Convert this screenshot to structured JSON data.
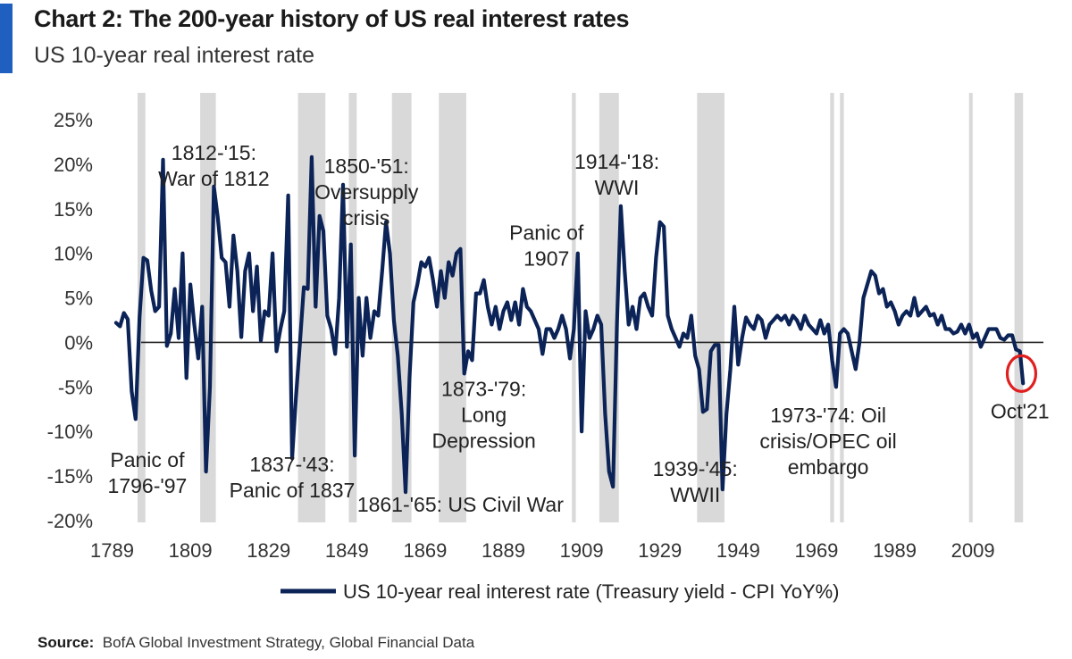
{
  "header": {
    "title": "Chart 2: The 200-year history of US real interest rates",
    "subtitle": "US 10-year real interest rate"
  },
  "source": {
    "label": "Source:",
    "text": "BofA Global Investment Strategy, Global Financial Data"
  },
  "colors": {
    "line": "#0b2356",
    "band": "#d9d9d9",
    "accent": "#1f5fbf",
    "highlight": "#e02020"
  },
  "chart_data": {
    "type": "line",
    "title": "Chart 2: The 200-year history of US real interest rates",
    "subtitle": "US 10-year real interest rate",
    "xlim": [
      1785,
      2027
    ],
    "ylim": [
      -20,
      25
    ],
    "x_ticks": [
      1789,
      1809,
      1829,
      1849,
      1869,
      1889,
      1909,
      1929,
      1949,
      1969,
      1989,
      2009
    ],
    "y_ticks": [
      {
        "value": 25,
        "label": "25%"
      },
      {
        "value": 20,
        "label": "20%"
      },
      {
        "value": 15,
        "label": "15%"
      },
      {
        "value": 10,
        "label": "10%"
      },
      {
        "value": 5,
        "label": "5%"
      },
      {
        "value": 0,
        "label": "0%"
      },
      {
        "value": -5,
        "label": "-5%"
      },
      {
        "value": -10,
        "label": "-10%"
      },
      {
        "value": -15,
        "label": "-15%"
      },
      {
        "value": -20,
        "label": "-20%"
      }
    ],
    "legend": {
      "placement": "bottom-center",
      "label": "US 10-year real interest rate (Treasury yield - CPI YoY%)"
    },
    "shaded_periods": [
      [
        1795.5,
        1797.5
      ],
      [
        1811.5,
        1815.5
      ],
      [
        1836.5,
        1843.5
      ],
      [
        1849.5,
        1851.5
      ],
      [
        1860.5,
        1865.5
      ],
      [
        1872.5,
        1879.5
      ],
      [
        1906.5,
        1907.5
      ],
      [
        1913.5,
        1918.5
      ],
      [
        1938.5,
        1945.5
      ],
      [
        1972.5,
        1973.5
      ],
      [
        1975,
        1976
      ],
      [
        2008,
        2008.8
      ],
      [
        2019.6,
        2021.8
      ]
    ],
    "annotations": [
      {
        "lines": [
          "1812-'15:",
          "War of 1812"
        ],
        "x": 1815,
        "y": 20.5
      },
      {
        "lines": [
          "1850-'51:",
          "Oversupply",
          "crisis"
        ],
        "x": 1854,
        "y": 19
      },
      {
        "lines": [
          "Panic of",
          "1907"
        ],
        "x": 1900,
        "y": 11.5
      },
      {
        "lines": [
          "1914-'18:",
          "WWI"
        ],
        "x": 1918,
        "y": 19.5
      },
      {
        "lines": [
          "1873-'79:",
          "Long",
          "Depression"
        ],
        "x": 1884,
        "y": -6
      },
      {
        "lines": [
          "1973-'74: Oil",
          "crisis/OPEC oil",
          "embargo"
        ],
        "x": 1972,
        "y": -9
      },
      {
        "lines": [
          "Panic of",
          "1796-'97"
        ],
        "x": 1798,
        "y": -14
      },
      {
        "lines": [
          "1837-'43:",
          "Panic of 1837"
        ],
        "x": 1835,
        "y": -14.5
      },
      {
        "lines": [
          "1861-'65: US Civil War"
        ],
        "x": 1878,
        "y": -19
      },
      {
        "lines": [
          "1939-'45:",
          "WWII"
        ],
        "x": 1938,
        "y": -15
      },
      {
        "lines": [
          "Oct'21"
        ],
        "x": 2021,
        "y": -8.5
      }
    ],
    "highlight": {
      "x": 2021.4,
      "y": -3.5,
      "label": "Oct'21"
    },
    "series": [
      {
        "name": "US 10-year real interest rate (Treasury yield - CPI YoY%)",
        "points": [
          [
            1790,
            2.2
          ],
          [
            1791,
            1.8
          ],
          [
            1792,
            3.3
          ],
          [
            1793,
            2.6
          ],
          [
            1794,
            -5.5
          ],
          [
            1795,
            -8.6
          ],
          [
            1796,
            2.8
          ],
          [
            1797,
            9.5
          ],
          [
            1798,
            9.2
          ],
          [
            1799,
            5.8
          ],
          [
            1800,
            3.5
          ],
          [
            1801,
            4.0
          ],
          [
            1802,
            20.5
          ],
          [
            1803,
            -0.4
          ],
          [
            1804,
            1.0
          ],
          [
            1805,
            6.0
          ],
          [
            1806,
            0.5
          ],
          [
            1807,
            10.0
          ],
          [
            1808,
            -4.0
          ],
          [
            1809,
            6.5
          ],
          [
            1810,
            2.0
          ],
          [
            1811,
            -1.8
          ],
          [
            1812,
            4.0
          ],
          [
            1813,
            -14.5
          ],
          [
            1814,
            -5.0
          ],
          [
            1815,
            17.5
          ],
          [
            1816,
            14.0
          ],
          [
            1817,
            9.5
          ],
          [
            1818,
            9.0
          ],
          [
            1819,
            4.0
          ],
          [
            1820,
            12.0
          ],
          [
            1821,
            8.0
          ],
          [
            1822,
            0.6
          ],
          [
            1823,
            8.0
          ],
          [
            1824,
            10.0
          ],
          [
            1825,
            3.5
          ],
          [
            1826,
            8.5
          ],
          [
            1827,
            0.2
          ],
          [
            1828,
            3.5
          ],
          [
            1829,
            3.0
          ],
          [
            1830,
            10.0
          ],
          [
            1831,
            -1.0
          ],
          [
            1832,
            1.5
          ],
          [
            1833,
            3.5
          ],
          [
            1834,
            16.5
          ],
          [
            1835,
            -13.0
          ],
          [
            1836,
            -6.0
          ],
          [
            1837,
            0.0
          ],
          [
            1838,
            6.2
          ],
          [
            1839,
            6.0
          ],
          [
            1840,
            20.8
          ],
          [
            1841,
            4.0
          ],
          [
            1842,
            14.2
          ],
          [
            1843,
            12.5
          ],
          [
            1844,
            3.0
          ],
          [
            1845,
            1.5
          ],
          [
            1846,
            -1.3
          ],
          [
            1847,
            5.0
          ],
          [
            1848,
            17.7
          ],
          [
            1849,
            -0.5
          ],
          [
            1850,
            11.0
          ],
          [
            1851,
            -12.7
          ],
          [
            1852,
            5.0
          ],
          [
            1853,
            -1.5
          ],
          [
            1854,
            5.0
          ],
          [
            1855,
            0.5
          ],
          [
            1856,
            3.5
          ],
          [
            1857,
            3.0
          ],
          [
            1858,
            8.0
          ],
          [
            1859,
            13.5
          ],
          [
            1860,
            10.0
          ],
          [
            1861,
            2.5
          ],
          [
            1862,
            -1.5
          ],
          [
            1863,
            -8.0
          ],
          [
            1864,
            -16.8
          ],
          [
            1865,
            -4.0
          ],
          [
            1866,
            4.5
          ],
          [
            1867,
            6.5
          ],
          [
            1868,
            9.0
          ],
          [
            1869,
            8.5
          ],
          [
            1870,
            9.5
          ],
          [
            1871,
            7.0
          ],
          [
            1872,
            4.0
          ],
          [
            1873,
            8.0
          ],
          [
            1874,
            5.0
          ],
          [
            1875,
            9.0
          ],
          [
            1876,
            7.5
          ],
          [
            1877,
            10.0
          ],
          [
            1878,
            10.5
          ],
          [
            1879,
            -3.5
          ],
          [
            1880,
            -1.0
          ],
          [
            1881,
            -2.0
          ],
          [
            1882,
            5.5
          ],
          [
            1883,
            5.5
          ],
          [
            1884,
            7.0
          ],
          [
            1885,
            4.0
          ],
          [
            1886,
            2.0
          ],
          [
            1887,
            4.0
          ],
          [
            1888,
            1.5
          ],
          [
            1889,
            3.5
          ],
          [
            1890,
            4.5
          ],
          [
            1891,
            2.5
          ],
          [
            1892,
            4.5
          ],
          [
            1893,
            2.0
          ],
          [
            1894,
            6.0
          ],
          [
            1895,
            4.0
          ],
          [
            1896,
            3.5
          ],
          [
            1897,
            2.5
          ],
          [
            1898,
            1.5
          ],
          [
            1899,
            -1.3
          ],
          [
            1900,
            1.5
          ],
          [
            1901,
            1.5
          ],
          [
            1902,
            0.5
          ],
          [
            1903,
            1.5
          ],
          [
            1904,
            3.0
          ],
          [
            1905,
            1.5
          ],
          [
            1906,
            -1.8
          ],
          [
            1907,
            1.5
          ],
          [
            1908,
            10.0
          ],
          [
            1909,
            -10.0
          ],
          [
            1910,
            3.5
          ],
          [
            1911,
            0.5
          ],
          [
            1912,
            1.5
          ],
          [
            1913,
            3.0
          ],
          [
            1914,
            2.0
          ],
          [
            1915,
            -8.0
          ],
          [
            1916,
            -14.5
          ],
          [
            1917,
            -16.2
          ],
          [
            1918,
            2.0
          ],
          [
            1919,
            15.3
          ],
          [
            1920,
            8.0
          ],
          [
            1921,
            2.0
          ],
          [
            1922,
            4.0
          ],
          [
            1923,
            1.5
          ],
          [
            1924,
            5.0
          ],
          [
            1925,
            5.5
          ],
          [
            1926,
            4.0
          ],
          [
            1927,
            3.0
          ],
          [
            1928,
            9.5
          ],
          [
            1929,
            13.5
          ],
          [
            1930,
            13.0
          ],
          [
            1931,
            3.0
          ],
          [
            1932,
            1.5
          ],
          [
            1933,
            0.5
          ],
          [
            1934,
            -0.5
          ],
          [
            1935,
            1.0
          ],
          [
            1936,
            0.5
          ],
          [
            1937,
            3.0
          ],
          [
            1938,
            -1.5
          ],
          [
            1939,
            -3.0
          ],
          [
            1940,
            -7.8
          ],
          [
            1941,
            -7.5
          ],
          [
            1942,
            -1.0
          ],
          [
            1943,
            -0.3
          ],
          [
            1944,
            -0.3
          ],
          [
            1945,
            -16.5
          ],
          [
            1946,
            -8.0
          ],
          [
            1947,
            -3.0
          ],
          [
            1948,
            4.0
          ],
          [
            1949,
            -2.5
          ],
          [
            1950,
            0.5
          ],
          [
            1951,
            2.8
          ],
          [
            1952,
            2.0
          ],
          [
            1953,
            1.5
          ],
          [
            1954,
            3.0
          ],
          [
            1955,
            2.5
          ],
          [
            1956,
            0.5
          ],
          [
            1957,
            2.0
          ],
          [
            1958,
            2.5
          ],
          [
            1959,
            3.0
          ],
          [
            1960,
            2.5
          ],
          [
            1961,
            3.0
          ],
          [
            1962,
            2.0
          ],
          [
            1963,
            3.0
          ],
          [
            1964,
            2.5
          ],
          [
            1965,
            1.5
          ],
          [
            1966,
            3.0
          ],
          [
            1967,
            2.0
          ],
          [
            1968,
            1.5
          ],
          [
            1969,
            1.0
          ],
          [
            1970,
            2.5
          ],
          [
            1971,
            1.0
          ],
          [
            1972,
            2.0
          ],
          [
            1973,
            -2.0
          ],
          [
            1974,
            -5.0
          ],
          [
            1975,
            1.0
          ],
          [
            1976,
            1.5
          ],
          [
            1977,
            1.0
          ],
          [
            1978,
            -1.0
          ],
          [
            1979,
            -3.0
          ],
          [
            1980,
            0.0
          ],
          [
            1981,
            5.0
          ],
          [
            1982,
            6.5
          ],
          [
            1983,
            8.0
          ],
          [
            1984,
            7.5
          ],
          [
            1985,
            5.5
          ],
          [
            1986,
            6.0
          ],
          [
            1987,
            4.0
          ],
          [
            1988,
            4.5
          ],
          [
            1989,
            3.5
          ],
          [
            1990,
            2.0
          ],
          [
            1991,
            3.0
          ],
          [
            1992,
            3.5
          ],
          [
            1993,
            3.0
          ],
          [
            1994,
            5.0
          ],
          [
            1995,
            3.0
          ],
          [
            1996,
            3.5
          ],
          [
            1997,
            4.0
          ],
          [
            1998,
            3.0
          ],
          [
            1999,
            3.2
          ],
          [
            2000,
            2.0
          ],
          [
            2001,
            3.0
          ],
          [
            2002,
            1.5
          ],
          [
            2003,
            1.5
          ],
          [
            2004,
            1.0
          ],
          [
            2005,
            1.2
          ],
          [
            2006,
            2.0
          ],
          [
            2007,
            1.0
          ],
          [
            2008,
            2.0
          ],
          [
            2009,
            0.5
          ],
          [
            2010,
            1.0
          ],
          [
            2011,
            -0.5
          ],
          [
            2012,
            0.5
          ],
          [
            2013,
            1.5
          ],
          [
            2014,
            1.5
          ],
          [
            2015,
            1.5
          ],
          [
            2016,
            0.5
          ],
          [
            2017,
            0.3
          ],
          [
            2018,
            0.8
          ],
          [
            2019,
            0.8
          ],
          [
            2020,
            -0.8
          ],
          [
            2021,
            -1.0
          ],
          [
            2021.8,
            -4.6
          ]
        ]
      }
    ]
  }
}
